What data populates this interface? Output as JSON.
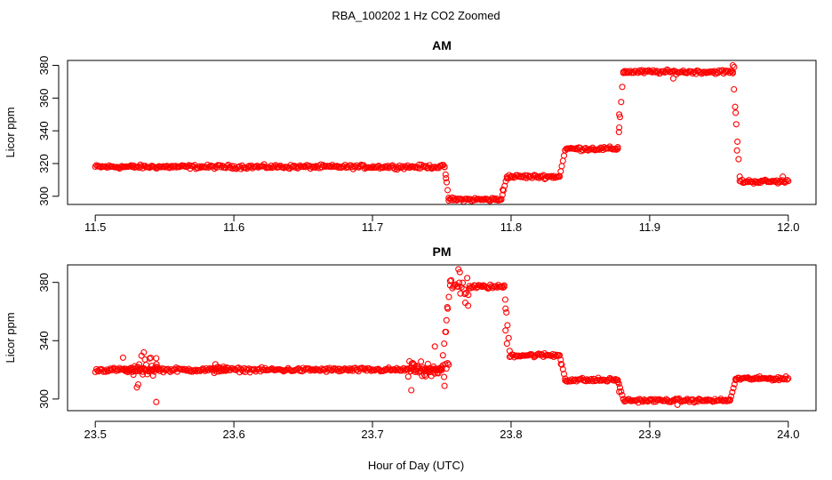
{
  "figure": {
    "title": "RBA_100202  1 Hz CO2 Zoomed",
    "xlabel": "Hour of Day (UTC)"
  },
  "chart_data": [
    {
      "type": "scatter",
      "title": "AM",
      "ylabel": "Licor ppm",
      "xlim": [
        11.48,
        12.02
      ],
      "ylim": [
        295,
        383
      ],
      "xticks": [
        11.5,
        11.6,
        11.7,
        11.8,
        11.9,
        12.0
      ],
      "xtick_labels": [
        "11.5",
        "11.6",
        "11.7",
        "11.8",
        "11.9",
        "12.0"
      ],
      "yticks": [
        300,
        320,
        340,
        360,
        380
      ],
      "ytick_labels": [
        "300",
        "320",
        "340",
        "360",
        "380"
      ],
      "marker_color": "#ff0000",
      "segments": [
        {
          "x0": 11.5,
          "x1": 11.752,
          "y": 318,
          "noise": 1.0
        },
        {
          "x0": 11.752,
          "x1": 11.755,
          "y0": 318,
          "y1": 299
        },
        {
          "x0": 11.755,
          "x1": 11.793,
          "y": 298,
          "noise": 1.0
        },
        {
          "x0": 11.793,
          "x1": 11.797,
          "y0": 298,
          "y1": 312
        },
        {
          "x0": 11.797,
          "x1": 11.835,
          "y": 312,
          "noise": 1.0
        },
        {
          "x0": 11.835,
          "x1": 11.839,
          "y0": 312,
          "y1": 328
        },
        {
          "x0": 11.839,
          "x1": 11.877,
          "y": 329,
          "noise": 1.0
        },
        {
          "x0": 11.877,
          "x1": 11.881,
          "y0": 330,
          "y1": 376
        },
        {
          "x0": 11.881,
          "x1": 11.96,
          "y": 376,
          "noise": 1.0
        },
        {
          "x0": 11.96,
          "x1": 11.965,
          "y0": 376,
          "y1": 312
        },
        {
          "x0": 11.965,
          "x1": 12.0,
          "y": 309,
          "noise": 1.0
        }
      ],
      "outliers": [
        {
          "x": 11.917,
          "y": 372
        },
        {
          "x": 11.96,
          "y": 380
        },
        {
          "x": 11.961,
          "y": 379
        },
        {
          "x": 11.962,
          "y": 351
        },
        {
          "x": 11.963,
          "y": 328
        },
        {
          "x": 11.878,
          "y": 350
        },
        {
          "x": 11.878,
          "y": 342
        },
        {
          "x": 11.996,
          "y": 312
        },
        {
          "x": 11.753,
          "y": 311
        },
        {
          "x": 11.794,
          "y": 304
        }
      ]
    },
    {
      "type": "scatter",
      "title": "PM",
      "ylabel": "Licor ppm",
      "xlim": [
        23.48,
        24.02
      ],
      "ylim": [
        292,
        392
      ],
      "xticks": [
        23.5,
        23.6,
        23.7,
        23.8,
        23.9,
        24.0
      ],
      "xtick_labels": [
        "23.5",
        "23.6",
        "23.7",
        "23.8",
        "23.9",
        "24.0"
      ],
      "yticks": [
        300,
        340,
        380
      ],
      "ytick_labels": [
        "300",
        "340",
        "380"
      ],
      "marker_color": "#ff0000",
      "segments": [
        {
          "x0": 23.5,
          "x1": 23.75,
          "y": 320,
          "noise": 1.2
        },
        {
          "x0": 23.52,
          "x1": 23.545,
          "y": 321,
          "noise": 6.0
        },
        {
          "x0": 23.585,
          "x1": 23.595,
          "y": 320,
          "noise": 3.0
        },
        {
          "x0": 23.725,
          "x1": 23.755,
          "y": 321,
          "noise": 6.0
        },
        {
          "x0": 23.75,
          "x1": 23.756,
          "y0": 322,
          "y1": 378
        },
        {
          "x0": 23.756,
          "x1": 23.77,
          "y": 377,
          "noise": 6.0
        },
        {
          "x0": 23.77,
          "x1": 23.795,
          "y": 377,
          "noise": 1.2
        },
        {
          "x0": 23.795,
          "x1": 23.799,
          "y0": 377,
          "y1": 333
        },
        {
          "x0": 23.799,
          "x1": 23.835,
          "y": 330,
          "noise": 1.2
        },
        {
          "x0": 23.835,
          "x1": 23.839,
          "y0": 330,
          "y1": 314
        },
        {
          "x0": 23.839,
          "x1": 23.877,
          "y": 313,
          "noise": 1.2
        },
        {
          "x0": 23.877,
          "x1": 23.881,
          "y0": 313,
          "y1": 300
        },
        {
          "x0": 23.881,
          "x1": 23.958,
          "y": 299,
          "noise": 1.0
        },
        {
          "x0": 23.958,
          "x1": 23.962,
          "y0": 299,
          "y1": 313
        },
        {
          "x0": 23.962,
          "x1": 24.0,
          "y": 314,
          "noise": 1.0
        }
      ],
      "outliers": [
        {
          "x": 23.544,
          "y": 298
        },
        {
          "x": 23.53,
          "y": 308
        },
        {
          "x": 23.531,
          "y": 310
        },
        {
          "x": 23.535,
          "y": 332
        },
        {
          "x": 23.544,
          "y": 328
        },
        {
          "x": 23.728,
          "y": 306
        },
        {
          "x": 23.745,
          "y": 336
        },
        {
          "x": 23.752,
          "y": 309
        },
        {
          "x": 23.753,
          "y": 346
        },
        {
          "x": 23.754,
          "y": 363
        },
        {
          "x": 23.762,
          "y": 389
        },
        {
          "x": 23.763,
          "y": 387
        },
        {
          "x": 23.767,
          "y": 366
        },
        {
          "x": 23.769,
          "y": 364
        },
        {
          "x": 23.796,
          "y": 362
        },
        {
          "x": 23.796,
          "y": 347
        },
        {
          "x": 23.797,
          "y": 338
        },
        {
          "x": 23.836,
          "y": 324
        },
        {
          "x": 23.878,
          "y": 305
        },
        {
          "x": 23.92,
          "y": 296
        }
      ]
    }
  ]
}
